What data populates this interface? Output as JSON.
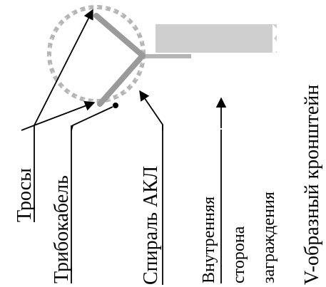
{
  "labels": {
    "cables": "Тросы",
    "tribocable": "Трибокабель",
    "spiral": "Спираль АКЛ",
    "inner_side_line1": "Внутренняя",
    "inner_side_line2": "сторона",
    "inner_side_line3": "заграждения",
    "bracket": "V-образный кронштейн"
  },
  "colors": {
    "bracket": "#9a9a9a",
    "post": "#cfcfcf",
    "spiral": "#b5b5b5",
    "line": "#000000"
  }
}
